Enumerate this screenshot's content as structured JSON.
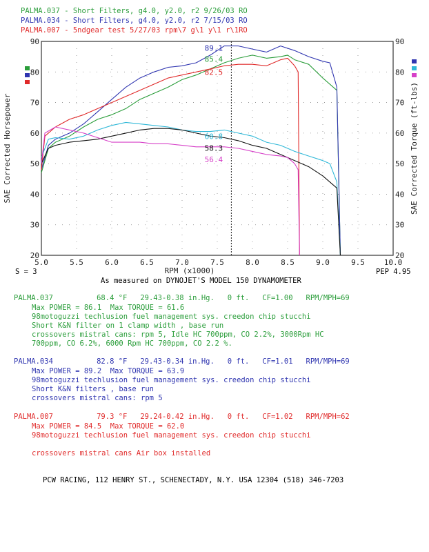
{
  "header_lines": [
    {
      "text": "PALMA.037 - Short Filters, g4.0, y2.0, r2 9/26/03 RO",
      "color": "#2a9d3a"
    },
    {
      "text": "PALMA.034 - Short Filters, g4.0, y2.0, r2 7/15/03 RO",
      "color": "#2f35b0"
    },
    {
      "text": "PALMA.007 - 5ndgear test 5/27/03 rpm\\7 g\\1 y\\1 r\\1RO",
      "color": "#e02a2a"
    }
  ],
  "legend_marks": [
    {
      "color": "#2a9d3a"
    },
    {
      "color": "#2f35b0"
    },
    {
      "color": "#e02a2a"
    }
  ],
  "right_legend_marks": [
    {
      "color": "#2f35b0"
    },
    {
      "color": "#2fb8d8"
    },
    {
      "color": "#d640c8"
    }
  ],
  "axes": {
    "ylabel_left": "SAE Corrected Horsepower",
    "ylabel_right": "SAE Corrected Torque (ft-lbs)",
    "xlabel": "RPM (x1000)",
    "subtitle": "As measured on DYNOJET'S MODEL 150 DYNAMOMETER",
    "bottom_left": "S = 3",
    "bottom_right": "PEP 4.95"
  },
  "chart_data": {
    "type": "line",
    "xlabel": "RPM (x1000)",
    "ylabel": "SAE Corrected Horsepower",
    "ylabel_right": "SAE Corrected Torque (ft-lbs)",
    "xlim": [
      5.0,
      10.0
    ],
    "ylim": [
      20,
      90
    ],
    "y2lim": [
      20,
      90
    ],
    "x_ticks": [
      "5.0",
      "5.5",
      "6.0",
      "6.5",
      "7.0",
      "7.5",
      "8.0",
      "8.5",
      "9.0",
      "9.5",
      "10.0"
    ],
    "y_ticks": [
      "20",
      "30",
      "40",
      "50",
      "60",
      "70",
      "80",
      "90"
    ],
    "grid": true,
    "cursor_x": 7.7,
    "series": [
      {
        "name": "PALMA.037",
        "kind": "power",
        "color": "#2a9d3a",
        "x": [
          5.0,
          5.1,
          5.2,
          5.4,
          5.6,
          5.8,
          6.0,
          6.2,
          6.4,
          6.6,
          6.8,
          7.0,
          7.2,
          7.4,
          7.6,
          7.8,
          8.0,
          8.2,
          8.4,
          8.5,
          8.6,
          8.8,
          9.0,
          9.2,
          9.25
        ],
        "y": [
          47,
          55,
          57,
          59,
          62,
          64.5,
          66,
          68,
          71,
          73,
          75,
          77.5,
          79,
          81,
          83,
          84.5,
          85.5,
          84.5,
          85,
          85.5,
          84,
          82.5,
          78,
          74,
          20
        ]
      },
      {
        "name": "PALMA.034",
        "kind": "power",
        "color": "#2f35b0",
        "x": [
          5.0,
          5.1,
          5.2,
          5.4,
          5.6,
          5.8,
          6.0,
          6.2,
          6.4,
          6.6,
          6.8,
          7.0,
          7.2,
          7.4,
          7.6,
          7.8,
          8.0,
          8.2,
          8.4,
          8.6,
          8.8,
          9.0,
          9.1,
          9.2,
          9.25
        ],
        "y": [
          48,
          56,
          58,
          60,
          63,
          67,
          71,
          75,
          78,
          80,
          81.5,
          82,
          83,
          85.5,
          88.5,
          88.5,
          87.5,
          86.5,
          88.5,
          87,
          85,
          83.5,
          83,
          75,
          20
        ]
      },
      {
        "name": "PALMA.007",
        "kind": "power",
        "color": "#e02a2a",
        "x": [
          5.0,
          5.05,
          5.2,
          5.4,
          5.6,
          5.8,
          6.0,
          6.2,
          6.4,
          6.6,
          6.8,
          7.0,
          7.2,
          7.4,
          7.6,
          7.8,
          8.0,
          8.2,
          8.4,
          8.5,
          8.6,
          8.65,
          8.67
        ],
        "y": [
          48,
          59,
          62,
          64.5,
          66,
          68,
          70,
          72,
          74,
          76,
          78,
          79,
          80,
          81,
          82,
          82.5,
          82.5,
          82,
          84,
          84.5,
          82,
          80,
          20
        ]
      },
      {
        "name": "PALMA.034",
        "kind": "torque",
        "color": "#2fb8d8",
        "x": [
          5.0,
          5.1,
          5.2,
          5.4,
          5.6,
          5.8,
          6.0,
          6.2,
          6.4,
          6.6,
          6.8,
          7.0,
          7.2,
          7.4,
          7.6,
          7.8,
          8.0,
          8.2,
          8.4,
          8.6,
          8.8,
          9.0,
          9.1,
          9.2,
          9.25
        ],
        "y": [
          52,
          58,
          58.5,
          58,
          59,
          61,
          62.5,
          63.5,
          63,
          62.5,
          62,
          61,
          60.5,
          60.5,
          61,
          60,
          59,
          57,
          56,
          54,
          52.5,
          51,
          50,
          44,
          20
        ]
      },
      {
        "name": "PALMA.037",
        "kind": "torque",
        "color": "#111111",
        "x": [
          5.0,
          5.1,
          5.2,
          5.4,
          5.6,
          5.8,
          6.0,
          6.2,
          6.4,
          6.6,
          6.8,
          7.0,
          7.2,
          7.4,
          7.6,
          7.8,
          8.0,
          8.2,
          8.4,
          8.6,
          8.8,
          9.0,
          9.2,
          9.25
        ],
        "y": [
          50,
          55,
          56,
          57,
          57.5,
          58,
          59,
          60,
          61,
          61.5,
          61.5,
          61,
          60,
          59,
          58.5,
          57.5,
          56,
          55,
          53,
          51,
          49,
          46,
          42,
          20
        ]
      },
      {
        "name": "PALMA.007",
        "kind": "torque",
        "color": "#d640c8",
        "x": [
          5.0,
          5.05,
          5.2,
          5.4,
          5.6,
          5.8,
          6.0,
          6.2,
          6.4,
          6.6,
          6.8,
          7.0,
          7.2,
          7.4,
          7.6,
          7.8,
          8.0,
          8.2,
          8.4,
          8.5,
          8.6,
          8.65,
          8.67
        ],
        "y": [
          50,
          60,
          62,
          61,
          60,
          58.5,
          57,
          57,
          57,
          56.5,
          56.5,
          56,
          55.5,
          55.5,
          55.5,
          55,
          54,
          53,
          52.5,
          52,
          50,
          48,
          20
        ]
      }
    ],
    "annotations": [
      {
        "text": "89.1",
        "x": 7.32,
        "y": 87.8,
        "color": "#2f35b0"
      },
      {
        "text": "85.4",
        "x": 7.32,
        "y": 84.2,
        "color": "#2a9d3a"
      },
      {
        "text": "82.5",
        "x": 7.32,
        "y": 80.0,
        "color": "#e02a2a"
      },
      {
        "text": "60.8",
        "x": 7.32,
        "y": 59.0,
        "color": "#2fb8d8"
      },
      {
        "text": "58.3",
        "x": 7.32,
        "y": 55.1,
        "color": "#111111"
      },
      {
        "text": "56.4",
        "x": 7.32,
        "y": 51.4,
        "color": "#d640c8"
      }
    ]
  },
  "runs": [
    {
      "color": "#2a9d3a",
      "line1": "PALMA.037          68.4 °F   29.43-0.38 in.Hg.   0 ft.   CF=1.00   RPM/MPH=69",
      "lines": [
        "Max POWER = 86.1  Max TORQUE = 61.6",
        "98motoguzzi techlusion fuel management sys. creedon chip stucchi",
        "Short K&N filter on 1 clamp width , base run",
        "crossovers mistral cans: rpm 5, Idle HC 700ppm, CO 2.2%, 3000Rpm HC",
        "700ppm, CO 6.2%, 6000 Rpm HC 700ppm, CO 2.2 %."
      ]
    },
    {
      "color": "#2f35b0",
      "line1": "PALMA.034          82.8 °F   29.43-0.34 in.Hg.   0 ft.   CF=1.01   RPM/MPH=69",
      "lines": [
        "Max POWER = 89.2  Max TORQUE = 63.9",
        "98motoguzzi techlusion fuel management sys. creedon chip stucchi",
        "Short K&N filters , base run",
        "crossovers mistral cans: rpm 5"
      ]
    },
    {
      "color": "#e02a2a",
      "line1": "PALMA.007          79.3 °F   29.24-0.42 in.Hg.   0 ft.   CF=1.02   RPM/MPH=62",
      "lines": [
        "Max POWER = 84.5  Max TORQUE = 62.0",
        "98motoguzzi techlusion fuel management sys. creedon chip stucchi",
        "",
        "crossovers mistral cans Air box installed"
      ]
    }
  ],
  "footer": "PCW RACING, 112 HENRY ST., SCHENECTADY, N.Y. USA 12304 (518) 346-7203"
}
